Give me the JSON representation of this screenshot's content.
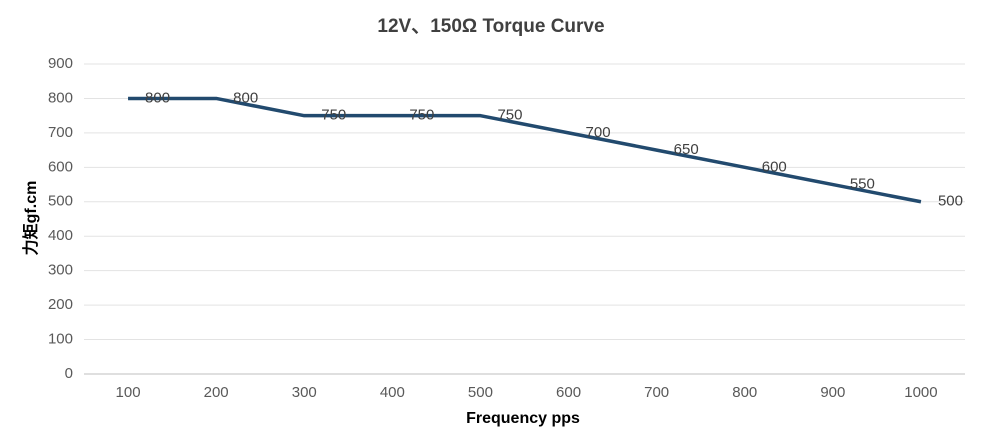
{
  "chart_data": {
    "type": "line",
    "title": "12V、150Ω Torque Curve",
    "x_label": "Frequency pps",
    "y_label": "力矩gf.cm",
    "categories": [
      "100",
      "200",
      "300",
      "400",
      "500",
      "600",
      "700",
      "800",
      "900",
      "1000"
    ],
    "series": [
      {
        "color": "#224a6e",
        "values": [
          800,
          800,
          750,
          750,
          750,
          700,
          650,
          600,
          550,
          500
        ]
      }
    ],
    "ylim": [
      0,
      900
    ],
    "yticks": [
      0,
      100,
      200,
      300,
      400,
      500,
      600,
      700,
      800,
      900
    ],
    "grid": true
  }
}
